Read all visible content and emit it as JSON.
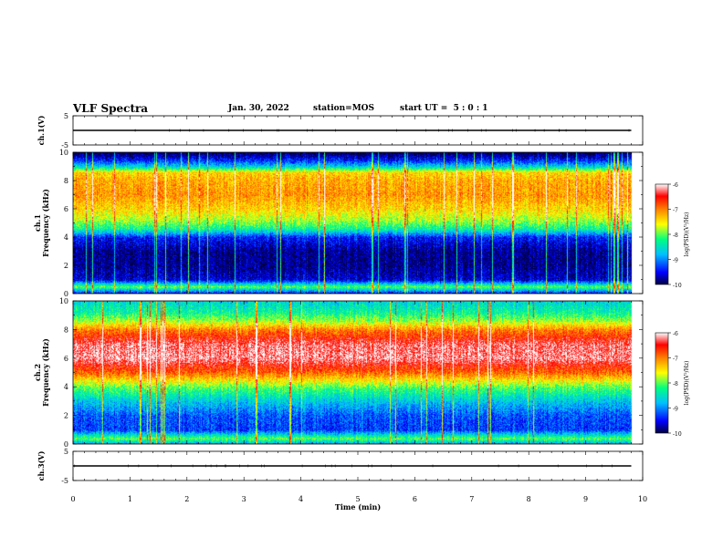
{
  "header": {
    "title": "VLF Spectra",
    "date": "Jan. 30, 2022",
    "station": "station=MOS",
    "start": "start UT =  5 : 0 : 1"
  },
  "colors": {
    "colormap": [
      "#000040",
      "#0000ff",
      "#00c0ff",
      "#00ff80",
      "#ffff00",
      "#ff8000",
      "#ff0000",
      "#ffffff"
    ]
  },
  "chart_data": [
    {
      "type": "line",
      "id": "ch1-waveform",
      "ylabel": "ch.1(V)",
      "ylim": [
        -5,
        5
      ],
      "yticks": [
        "5",
        "-5"
      ],
      "xlim": [
        0,
        10
      ],
      "series": [
        {
          "values_note": "flat trace",
          "x": [
            0,
            9.8
          ],
          "y": [
            0,
            0
          ]
        }
      ]
    },
    {
      "type": "heatmap",
      "id": "ch1-spectrogram",
      "ylabel": "ch.1\nFrequency (kHz)",
      "ylim": [
        0,
        10
      ],
      "yticks": [
        "0",
        "2",
        "4",
        "6",
        "8",
        "10"
      ],
      "xlim": [
        0,
        10
      ],
      "data_end_min": 9.8,
      "profile": [
        {
          "f": 0.0,
          "level": -9.6
        },
        {
          "f": 0.5,
          "level": -8.0
        },
        {
          "f": 1.0,
          "level": -9.6
        },
        {
          "f": 2.0,
          "level": -9.8
        },
        {
          "f": 3.0,
          "level": -9.8
        },
        {
          "f": 4.0,
          "level": -9.4
        },
        {
          "f": 4.6,
          "level": -8.3
        },
        {
          "f": 5.2,
          "level": -7.8
        },
        {
          "f": 6.0,
          "level": -7.4
        },
        {
          "f": 7.0,
          "level": -7.1
        },
        {
          "f": 8.0,
          "level": -7.2
        },
        {
          "f": 8.6,
          "level": -7.4
        },
        {
          "f": 9.0,
          "level": -8.6
        },
        {
          "f": 9.4,
          "level": -9.3
        },
        {
          "f": 10.0,
          "level": -10.0
        }
      ],
      "colorbar": {
        "label": "log(PSD)(V²/Hz)",
        "ticks": [
          "-6",
          "-7",
          "-8",
          "-9",
          "-10"
        ],
        "range": [
          -10,
          -6
        ]
      }
    },
    {
      "type": "heatmap",
      "id": "ch2-spectrogram",
      "ylabel": "ch.2\nFrequency (kHz)",
      "ylim": [
        0,
        10
      ],
      "yticks": [
        "0",
        "2",
        "4",
        "6",
        "8",
        "10"
      ],
      "xlim": [
        0,
        10
      ],
      "data_end_min": 9.8,
      "profile": [
        {
          "f": 0.0,
          "level": -9.0
        },
        {
          "f": 0.4,
          "level": -8.0
        },
        {
          "f": 1.0,
          "level": -9.3
        },
        {
          "f": 2.0,
          "level": -9.2
        },
        {
          "f": 3.0,
          "level": -8.7
        },
        {
          "f": 4.0,
          "level": -8.0
        },
        {
          "f": 5.0,
          "level": -6.9
        },
        {
          "f": 6.0,
          "level": -6.2
        },
        {
          "f": 7.0,
          "level": -6.3
        },
        {
          "f": 8.0,
          "level": -7.0
        },
        {
          "f": 8.6,
          "level": -7.8
        },
        {
          "f": 9.2,
          "level": -8.3
        },
        {
          "f": 10.0,
          "level": -8.6
        }
      ],
      "colorbar": {
        "label": "log(PSD)(V²/Hz)",
        "ticks": [
          "-6",
          "-7",
          "-8",
          "-9",
          "-10"
        ],
        "range": [
          -10,
          -6
        ]
      }
    },
    {
      "type": "line",
      "id": "ch3-waveform",
      "ylabel": "ch.3(V)",
      "ylim": [
        -5,
        5
      ],
      "yticks": [
        "5",
        "-5"
      ],
      "xlim": [
        0,
        10
      ],
      "xlabel": "Time (min)",
      "xticks": [
        "0",
        "1",
        "2",
        "3",
        "4",
        "5",
        "6",
        "7",
        "8",
        "9",
        "10"
      ],
      "series": [
        {
          "values_note": "flat trace",
          "x": [
            0,
            9.8
          ],
          "y": [
            0,
            0
          ]
        }
      ]
    }
  ]
}
